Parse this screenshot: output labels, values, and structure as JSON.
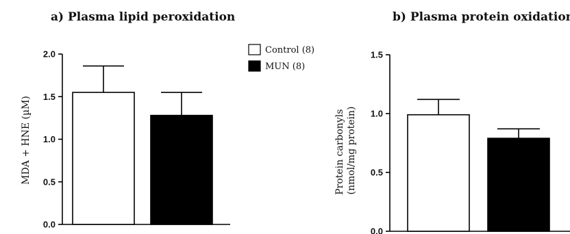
{
  "chart_data": [
    {
      "type": "bar",
      "title": "a) Plasma lipid peroxidation",
      "ylabel": "MDA + HNE (µM)",
      "ylim": [
        0,
        2.0
      ],
      "yticks": [
        "0.0",
        "0.5",
        "1.0",
        "1.5",
        "2.0"
      ],
      "categories": [
        "Control (8)",
        "MUN (8)"
      ],
      "values": [
        1.55,
        1.28
      ],
      "errors": [
        0.31,
        0.27
      ],
      "colors": [
        "#ffffff",
        "#000000"
      ]
    },
    {
      "type": "bar",
      "title": "b) Plasma protein oxidation",
      "ylabel": [
        "Protein carbonyls",
        "(nmol/mg protein)"
      ],
      "ylim": [
        0,
        1.5
      ],
      "yticks": [
        "0.0",
        "0.5",
        "1.0",
        "1.5"
      ],
      "categories": [
        "Control (8)",
        "MUN (8)"
      ],
      "values": [
        0.99,
        0.79
      ],
      "errors": [
        0.13,
        0.08
      ],
      "colors": [
        "#ffffff",
        "#000000"
      ]
    }
  ],
  "legend": [
    {
      "label": "Control (8)",
      "color": "#ffffff"
    },
    {
      "label": "MUN (8)",
      "color": "#000000"
    }
  ]
}
